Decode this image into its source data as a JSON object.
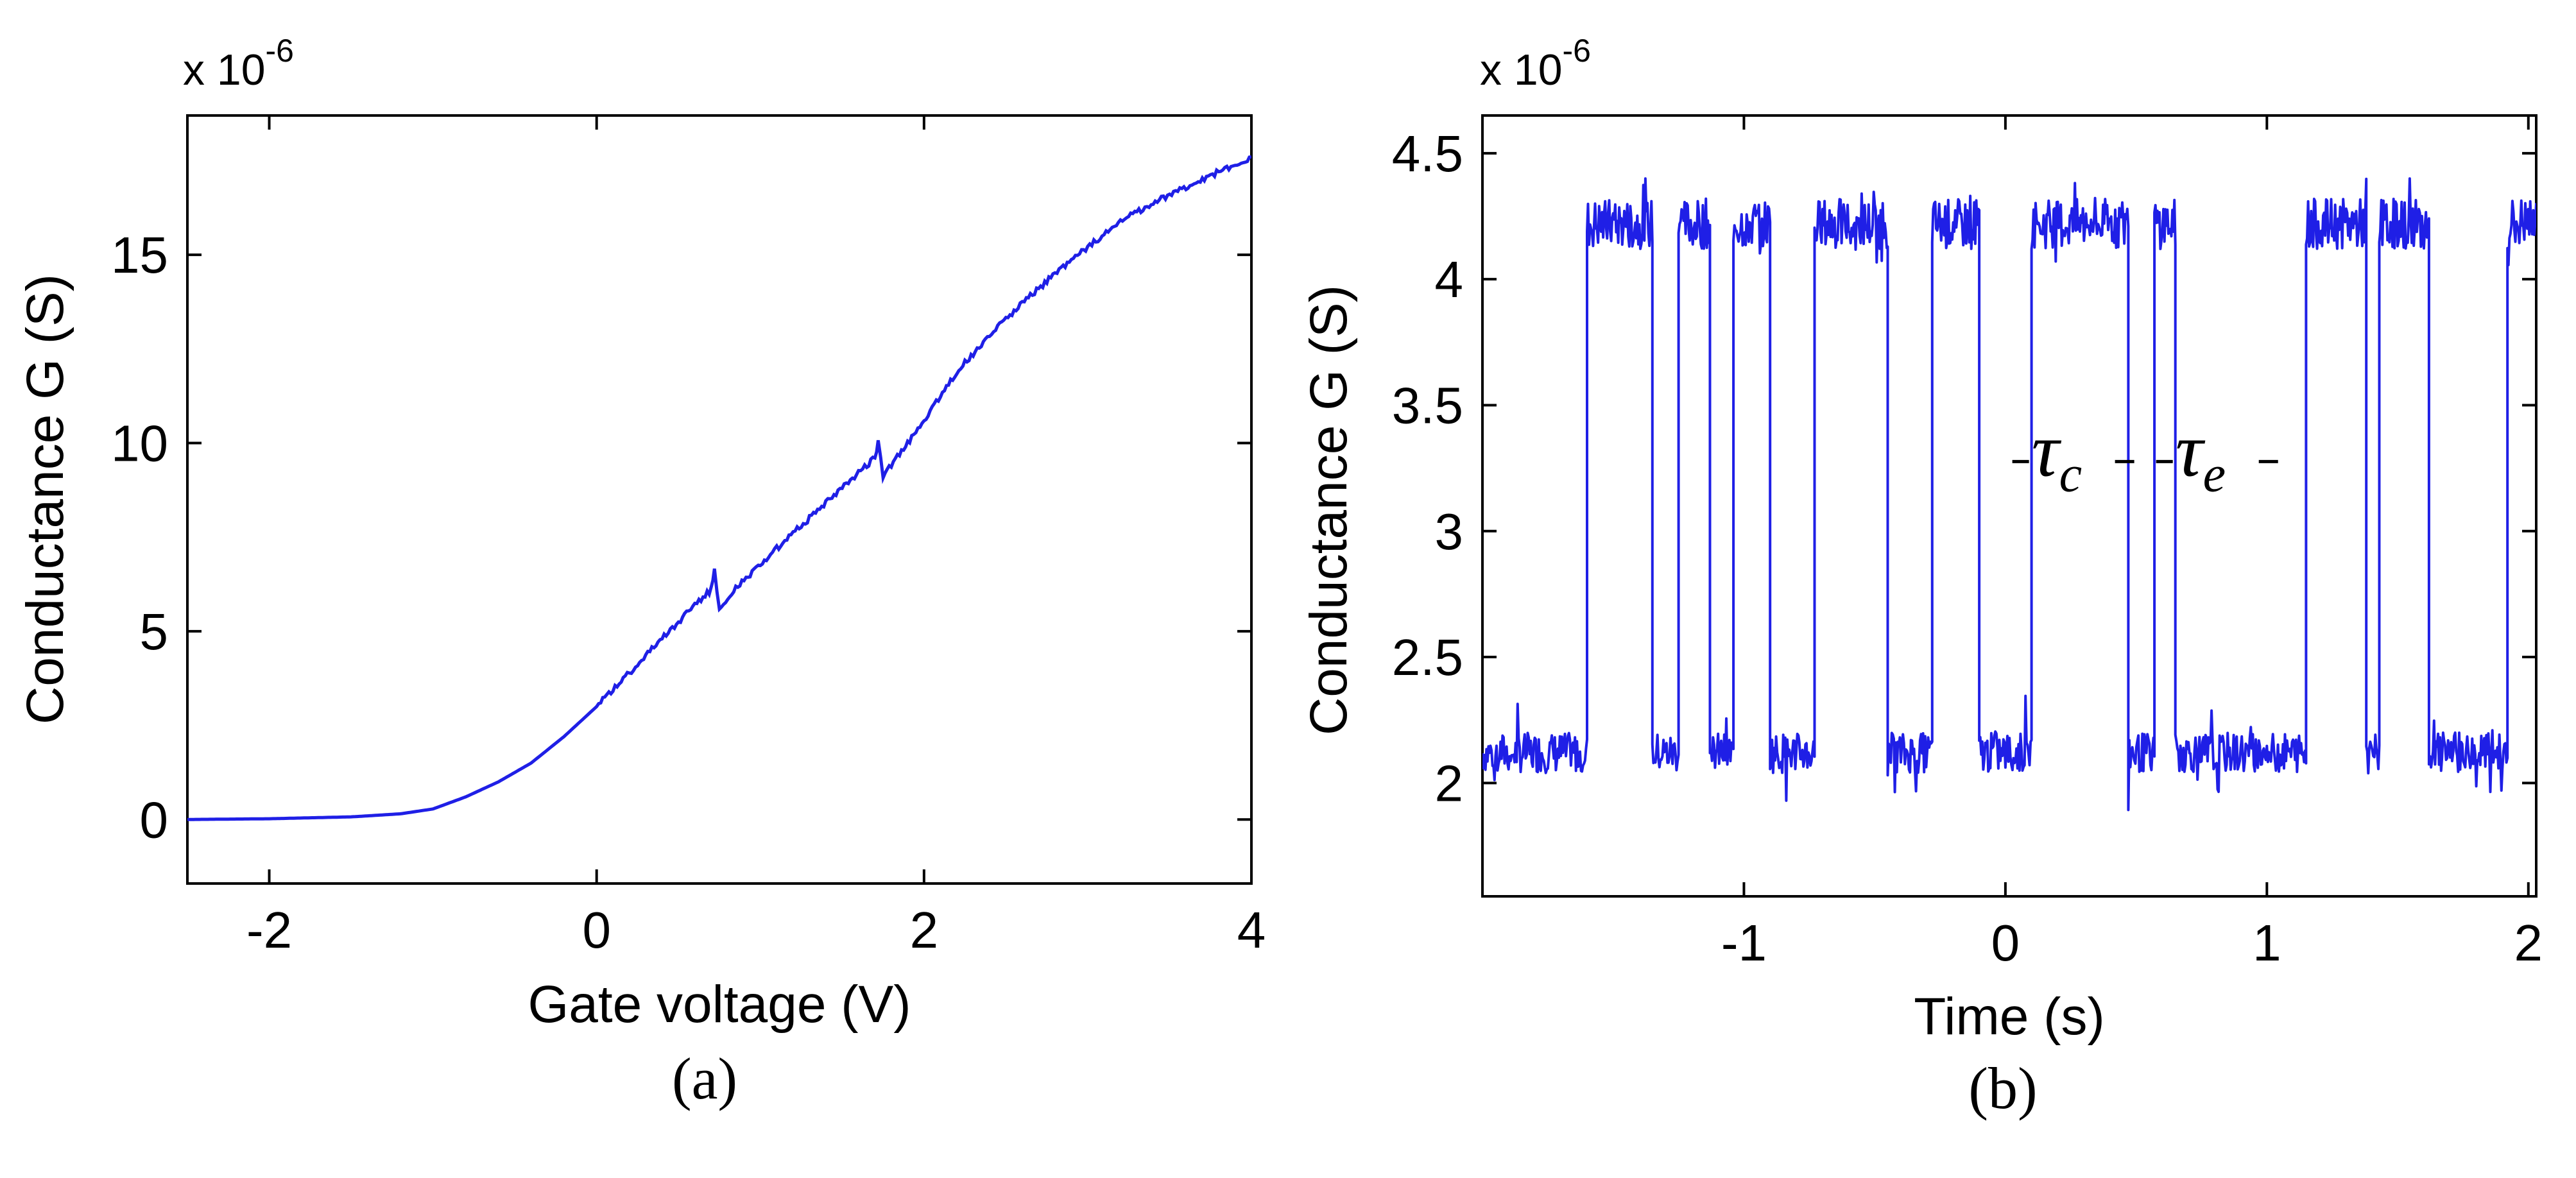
{
  "chart_data": [
    {
      "type": "line",
      "panel_label": "(a)",
      "exponent_label": "x 10",
      "exponent_power": "-6",
      "xlabel": "Gate voltage (V)",
      "ylabel": "Conductance G (S)",
      "xlim": [
        -2.5,
        4
      ],
      "ylim": [
        -1.7,
        18.7
      ],
      "xticks": [
        -2,
        0,
        2,
        4
      ],
      "xtick_labels": [
        "-2",
        "0",
        "2",
        "4"
      ],
      "yticks": [
        0,
        5,
        10,
        15
      ],
      "ytick_labels": [
        "0",
        "5",
        "10",
        "15"
      ],
      "grid": false,
      "color": "#1f1fe6",
      "series": [
        {
          "x": [
            -2.5,
            -2.0,
            -1.5,
            -1.2,
            -1.0,
            -0.8,
            -0.6,
            -0.4,
            -0.2,
            0.0,
            0.2,
            0.4,
            0.6,
            0.7,
            0.72,
            0.75,
            0.8,
            1.0,
            1.2,
            1.4,
            1.6,
            1.7,
            1.72,
            1.75,
            1.8,
            2.0,
            2.2,
            2.5,
            2.8,
            3.0,
            3.2,
            3.5,
            3.8,
            4.0
          ],
          "y": [
            0.0,
            0.02,
            0.07,
            0.15,
            0.28,
            0.6,
            1.0,
            1.5,
            2.2,
            3.0,
            3.9,
            4.8,
            5.7,
            6.1,
            6.6,
            5.6,
            5.9,
            6.8,
            7.6,
            8.4,
            9.2,
            9.6,
            10.0,
            9.1,
            9.4,
            10.6,
            11.9,
            13.3,
            14.5,
            15.2,
            15.9,
            16.6,
            17.2,
            17.6
          ]
        }
      ]
    },
    {
      "type": "line",
      "panel_label": "(b)",
      "exponent_label": "x 10",
      "exponent_power": "-6",
      "xlabel": "Time (s)",
      "ylabel": "Conductance G (S)",
      "xlim": [
        -2,
        2.03
      ],
      "ylim": [
        1.55,
        4.65
      ],
      "xticks": [
        -1,
        0,
        1,
        2
      ],
      "xtick_labels": [
        "-1",
        "0",
        "1",
        "2"
      ],
      "yticks": [
        2,
        2.5,
        3,
        3.5,
        4,
        4.5
      ],
      "ytick_labels": [
        "2",
        "2.5",
        "3",
        "3.5",
        "4",
        "4.5"
      ],
      "grid": false,
      "color": "#1f1fe6",
      "low_level": 2.12,
      "high_level": 4.22,
      "segments": [
        [
          -2.0,
          -1.6,
          0
        ],
        [
          -1.6,
          -1.35,
          1
        ],
        [
          -1.35,
          -1.25,
          0
        ],
        [
          -1.25,
          -1.13,
          1
        ],
        [
          -1.13,
          -1.04,
          0
        ],
        [
          -1.04,
          -0.9,
          1
        ],
        [
          -0.9,
          -0.73,
          0
        ],
        [
          -0.73,
          -0.45,
          1
        ],
        [
          -0.45,
          -0.28,
          0
        ],
        [
          -0.28,
          -0.1,
          1
        ],
        [
          -0.1,
          0.1,
          0
        ],
        [
          0.1,
          0.47,
          1
        ],
        [
          0.47,
          0.57,
          0
        ],
        [
          0.57,
          0.65,
          1
        ],
        [
          0.65,
          1.15,
          0
        ],
        [
          1.15,
          1.38,
          1
        ],
        [
          1.38,
          1.43,
          0
        ],
        [
          1.43,
          1.62,
          1
        ],
        [
          1.62,
          1.92,
          0
        ],
        [
          1.92,
          2.03,
          1
        ]
      ],
      "annotations": [
        {
          "symbol": "τ",
          "subscript": "c",
          "x": 0.1,
          "y": 3.22
        },
        {
          "symbol": "τ",
          "subscript": "e",
          "x": 0.65,
          "y": 3.22
        }
      ]
    }
  ]
}
